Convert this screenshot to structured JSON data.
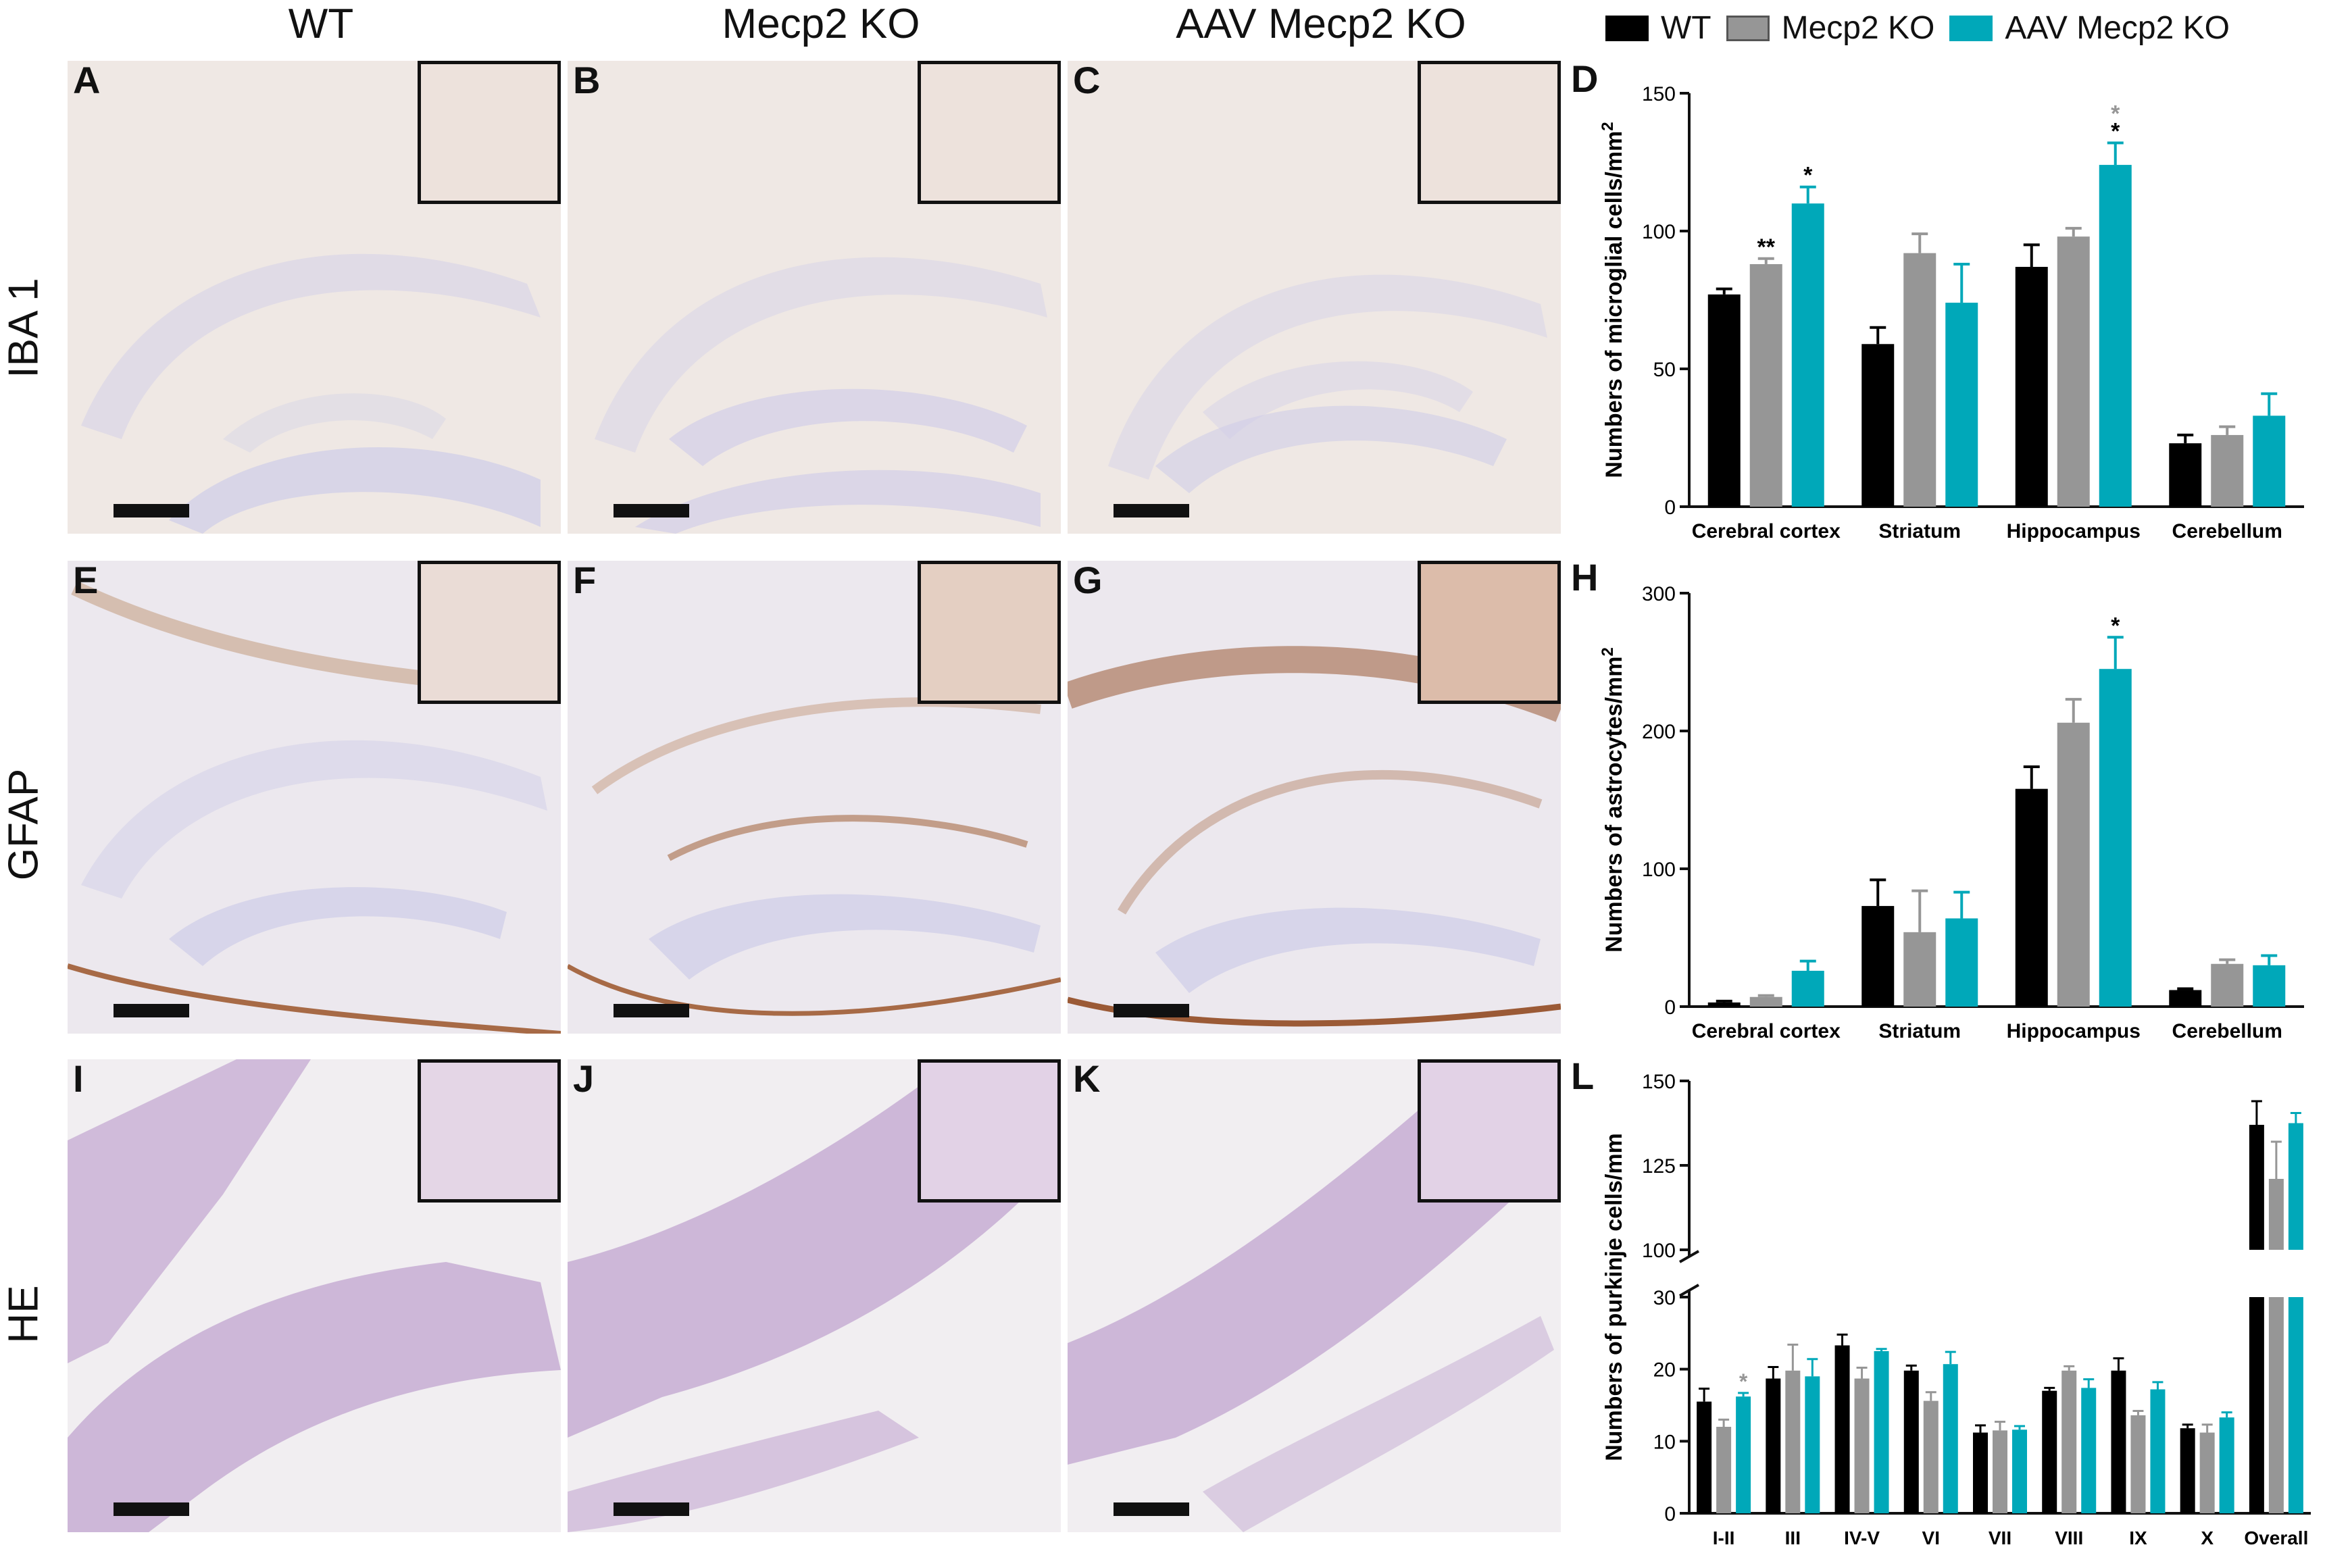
{
  "columns": [
    "WT",
    "Mecp2 KO",
    "AAV Mecp2 KO"
  ],
  "rows": [
    "IBA 1",
    "GFAP",
    "HE"
  ],
  "panel_letters": [
    "A",
    "B",
    "C",
    "D",
    "E",
    "F",
    "G",
    "H",
    "I",
    "J",
    "K",
    "L"
  ],
  "colors": {
    "WT": "#000000",
    "Mecp2 KO": "#969696",
    "AAV Mecp2 KO": "#00a8b9",
    "iba_bg": "#efe8e4",
    "gfap_bg": "#ece8ee",
    "he_bg": "#f1eef1",
    "band": "#cfcde8",
    "he_cells": "#c4a9d2",
    "brown": "#9b5a36"
  },
  "legend": [
    {
      "label": "WT",
      "color": "#000000"
    },
    {
      "label": "Mecp2 KO",
      "color": "#969696"
    },
    {
      "label": "AAV Mecp2 KO",
      "color": "#00a8b9"
    }
  ],
  "chart_data": [
    {
      "panel": "D",
      "type": "bar",
      "ylabel": "Numbers of microglial cells/mm2",
      "ylim": [
        0,
        150
      ],
      "yticks": [
        0,
        50,
        100,
        150
      ],
      "categories": [
        "Cerebral cortex",
        "Striatum",
        "Hippocampus",
        "Cerebellum"
      ],
      "series": [
        {
          "name": "WT",
          "values": [
            77,
            59,
            87,
            23
          ],
          "errors": [
            2,
            6,
            8,
            3
          ]
        },
        {
          "name": "Mecp2 KO",
          "values": [
            88,
            92,
            98,
            26
          ],
          "errors": [
            2,
            7,
            3,
            3
          ]
        },
        {
          "name": "AAV Mecp2 KO",
          "values": [
            110,
            74,
            124,
            33
          ],
          "errors": [
            6,
            14,
            8,
            8
          ]
        }
      ],
      "annotations": [
        {
          "category": 0,
          "series": 1,
          "text": "**",
          "color": "#000000"
        },
        {
          "category": 0,
          "series": 2,
          "text": "*",
          "color": "#000000"
        },
        {
          "category": 2,
          "series": 2,
          "text": "*",
          "color": "#000000"
        },
        {
          "category": 2,
          "series": 2,
          "text": "*",
          "color": "#969696"
        }
      ]
    },
    {
      "panel": "H",
      "type": "bar",
      "ylabel": "Numbers of astrocytes/mm2",
      "ylim": [
        0,
        300
      ],
      "yticks": [
        0,
        100,
        200,
        300
      ],
      "categories": [
        "Cerebral cortex",
        "Striatum",
        "Hippocampus",
        "Cerebellum"
      ],
      "series": [
        {
          "name": "WT",
          "values": [
            3,
            73,
            158,
            12
          ],
          "errors": [
            1,
            19,
            16,
            1
          ]
        },
        {
          "name": "Mecp2 KO",
          "values": [
            7,
            54,
            206,
            31
          ],
          "errors": [
            1,
            30,
            17,
            3
          ]
        },
        {
          "name": "AAV Mecp2 KO",
          "values": [
            26,
            64,
            245,
            30
          ],
          "errors": [
            7,
            19,
            23,
            7
          ]
        }
      ],
      "annotations": [
        {
          "category": 2,
          "series": 2,
          "text": "*",
          "color": "#000000"
        }
      ]
    },
    {
      "panel": "L",
      "type": "bar",
      "ylabel": "Numbers of purkinje cells/mm",
      "broken_axis": true,
      "lower_ylim": [
        0,
        30
      ],
      "lower_yticks": [
        0,
        10,
        20,
        30
      ],
      "upper_ylim": [
        100,
        150
      ],
      "upper_yticks": [
        100,
        125,
        150
      ],
      "categories": [
        "I-II",
        "III",
        "IV-V",
        "VI",
        "VII",
        "VIII",
        "IX",
        "X",
        "Overall"
      ],
      "series": [
        {
          "name": "WT",
          "values": [
            15.5,
            18.7,
            23.3,
            19.8,
            11.2,
            17.0,
            19.8,
            11.8,
            137
          ],
          "errors": [
            1.8,
            1.6,
            1.5,
            0.7,
            1.0,
            0.4,
            1.7,
            0.5,
            7
          ]
        },
        {
          "name": "Mecp2 KO",
          "values": [
            12.0,
            19.8,
            18.7,
            15.6,
            11.5,
            19.8,
            13.6,
            11.2,
            121
          ],
          "errors": [
            1.0,
            3.6,
            1.5,
            1.2,
            1.2,
            0.6,
            0.6,
            1.1,
            11
          ]
        },
        {
          "name": "AAV Mecp2 KO",
          "values": [
            16.2,
            19.0,
            22.5,
            20.7,
            11.6,
            17.4,
            17.2,
            13.3,
            137.5
          ],
          "errors": [
            0.5,
            2.4,
            0.3,
            1.7,
            0.5,
            1.2,
            1.0,
            0.7,
            3
          ]
        }
      ],
      "annotations": [
        {
          "category": 0,
          "series": 2,
          "text": "*",
          "color": "#969696"
        }
      ]
    }
  ]
}
